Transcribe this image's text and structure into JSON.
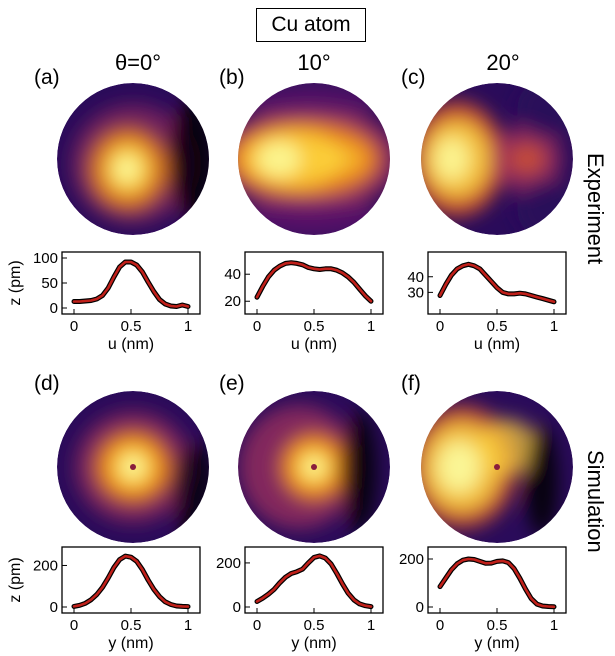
{
  "figure": {
    "title": "Cu atom",
    "column_headers": [
      "θ=0°",
      "10°",
      "20°"
    ],
    "row_labels": [
      "Experiment",
      "Simulation"
    ],
    "panel_labels": [
      "(a)",
      "(b)",
      "(c)",
      "(d)",
      "(e)",
      "(f)"
    ]
  },
  "colors": {
    "colormap": [
      "#000004",
      "#2a0b5a",
      "#6a176e",
      "#a8325e",
      "#de5a2c",
      "#f98e09",
      "#fbd23c",
      "#fcffa4"
    ],
    "curve": "#c0201a",
    "curve_shadow": "#000000",
    "center_dot": "#8a1e3c"
  },
  "chart_data": [
    {
      "type": "line",
      "panel": "(a)",
      "xlabel": "u (nm)",
      "ylabel": "z (pm)",
      "xlim": [
        0,
        1
      ],
      "ylim": [
        0,
        100
      ],
      "xticks": [
        0,
        0.5,
        1
      ],
      "yticks": [
        0,
        50,
        100
      ],
      "x": [
        0,
        0.05,
        0.1,
        0.15,
        0.2,
        0.25,
        0.3,
        0.35,
        0.4,
        0.45,
        0.5,
        0.55,
        0.6,
        0.65,
        0.7,
        0.75,
        0.8,
        0.85,
        0.9,
        0.95,
        1.0
      ],
      "y": [
        13,
        13,
        14,
        15,
        18,
        25,
        40,
        62,
        82,
        92,
        92,
        86,
        72,
        52,
        33,
        17,
        8,
        4,
        3,
        6,
        3
      ]
    },
    {
      "type": "line",
      "panel": "(b)",
      "xlabel": "u (nm)",
      "ylabel": "",
      "xlim": [
        0,
        1
      ],
      "ylim": [
        15,
        52
      ],
      "xticks": [
        0,
        0.5,
        1
      ],
      "yticks": [
        20,
        40
      ],
      "x": [
        0,
        0.05,
        0.1,
        0.15,
        0.2,
        0.25,
        0.3,
        0.35,
        0.4,
        0.45,
        0.5,
        0.55,
        0.6,
        0.65,
        0.7,
        0.75,
        0.8,
        0.85,
        0.9,
        0.95,
        1.0
      ],
      "y": [
        23,
        31,
        38,
        43,
        46,
        48,
        48.5,
        48,
        47,
        45,
        44,
        43.5,
        44,
        44,
        43,
        41,
        38,
        34,
        29,
        24,
        20
      ]
    },
    {
      "type": "line",
      "panel": "(c)",
      "xlabel": "u (nm)",
      "ylabel": "",
      "xlim": [
        0,
        1
      ],
      "ylim": [
        20,
        52
      ],
      "xticks": [
        0,
        0.5,
        1
      ],
      "yticks": [
        30,
        40
      ],
      "x": [
        0,
        0.05,
        0.1,
        0.15,
        0.2,
        0.25,
        0.3,
        0.35,
        0.4,
        0.45,
        0.5,
        0.55,
        0.6,
        0.65,
        0.7,
        0.75,
        0.8,
        0.85,
        0.9,
        0.95,
        1.0
      ],
      "y": [
        28,
        35,
        41,
        45,
        47,
        48,
        47,
        45,
        41,
        37,
        33,
        30,
        29,
        29,
        29.5,
        29,
        28,
        27,
        26,
        25,
        24
      ]
    },
    {
      "type": "line",
      "panel": "(d)",
      "xlabel": "y (nm)",
      "ylabel": "z (pm)",
      "xlim": [
        0,
        1
      ],
      "ylim": [
        0,
        260
      ],
      "xticks": [
        0,
        0.5,
        1
      ],
      "yticks": [
        0,
        200
      ],
      "x": [
        0,
        0.05,
        0.1,
        0.15,
        0.2,
        0.25,
        0.3,
        0.35,
        0.4,
        0.45,
        0.5,
        0.55,
        0.6,
        0.65,
        0.7,
        0.75,
        0.8,
        0.85,
        0.9,
        0.95,
        1.0
      ],
      "y": [
        3,
        8,
        18,
        35,
        60,
        95,
        140,
        190,
        228,
        245,
        240,
        220,
        180,
        130,
        85,
        50,
        25,
        12,
        5,
        3,
        2
      ]
    },
    {
      "type": "line",
      "panel": "(e)",
      "xlabel": "y (nm)",
      "ylabel": "",
      "xlim": [
        0,
        1
      ],
      "ylim": [
        0,
        245
      ],
      "xticks": [
        0,
        0.5,
        1
      ],
      "yticks": [
        0,
        200
      ],
      "x": [
        0,
        0.05,
        0.1,
        0.15,
        0.2,
        0.25,
        0.3,
        0.35,
        0.4,
        0.45,
        0.5,
        0.55,
        0.6,
        0.65,
        0.7,
        0.75,
        0.8,
        0.85,
        0.9,
        0.95,
        1.0
      ],
      "y": [
        25,
        40,
        58,
        80,
        110,
        135,
        152,
        160,
        172,
        200,
        225,
        232,
        222,
        195,
        152,
        105,
        62,
        32,
        14,
        6,
        2
      ]
    },
    {
      "type": "line",
      "panel": "(f)",
      "xlabel": "y (nm)",
      "ylabel": "",
      "xlim": [
        0,
        1
      ],
      "ylim": [
        0,
        225
      ],
      "xticks": [
        0,
        0.5,
        1
      ],
      "yticks": [
        0,
        200
      ],
      "x": [
        0,
        0.05,
        0.1,
        0.15,
        0.2,
        0.25,
        0.3,
        0.35,
        0.4,
        0.45,
        0.5,
        0.55,
        0.6,
        0.65,
        0.7,
        0.75,
        0.8,
        0.85,
        0.9,
        0.95,
        1.0
      ],
      "y": [
        85,
        120,
        155,
        180,
        195,
        200,
        198,
        190,
        182,
        183,
        190,
        192,
        185,
        160,
        120,
        75,
        35,
        12,
        4,
        2,
        1
      ]
    }
  ]
}
